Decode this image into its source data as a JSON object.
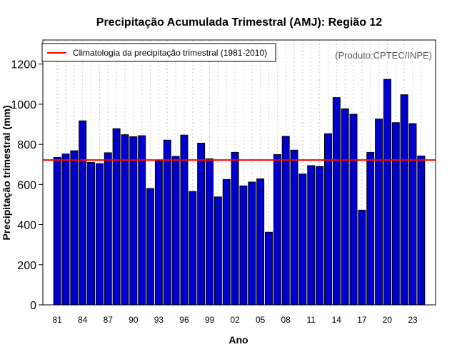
{
  "chart_data": {
    "type": "bar",
    "title": "Precipitação Acumulada Trimestral (AMJ): Região 12",
    "xlabel": "Ano",
    "ylabel": "Precipitação trimestral (mm)",
    "ylim": [
      0,
      1320
    ],
    "yticks": [
      0,
      200,
      400,
      600,
      800,
      1000,
      1200
    ],
    "ytick_labels": [
      "0",
      "200",
      "400",
      "600",
      "800",
      "1000",
      "1200"
    ],
    "categories": [
      "81",
      "82",
      "83",
      "84",
      "85",
      "86",
      "87",
      "88",
      "89",
      "90",
      "91",
      "92",
      "93",
      "94",
      "95",
      "96",
      "97",
      "98",
      "99",
      "00",
      "01",
      "02",
      "03",
      "04",
      "05",
      "06",
      "07",
      "08",
      "09",
      "10",
      "11",
      "12",
      "13",
      "14",
      "15",
      "16",
      "17",
      "18",
      "19",
      "20",
      "21",
      "22",
      "23",
      "24"
    ],
    "xtick_labels": [
      "81",
      "84",
      "87",
      "90",
      "93",
      "96",
      "99",
      "02",
      "05",
      "08",
      "11",
      "14",
      "17",
      "20",
      "23"
    ],
    "values": [
      735,
      752,
      768,
      917,
      710,
      704,
      758,
      878,
      848,
      838,
      843,
      580,
      717,
      821,
      740,
      846,
      565,
      806,
      728,
      538,
      625,
      760,
      593,
      612,
      628,
      362,
      749,
      840,
      771,
      652,
      694,
      690,
      853,
      1033,
      977,
      950,
      472,
      760,
      926,
      1124,
      908,
      1047,
      903,
      742
    ],
    "bar_color": "#0000cd",
    "reference_line": {
      "label": "Climatologia da precipitação trimestral (1981-2010)",
      "value": 722,
      "color": "#ff0000"
    },
    "legend": {
      "position": "top-left",
      "label": "Climatologia da precipitação trimestral (1981-2010)"
    },
    "grid": "vertical dotted",
    "credit": "(Produto:CPTEC/INPE)"
  }
}
